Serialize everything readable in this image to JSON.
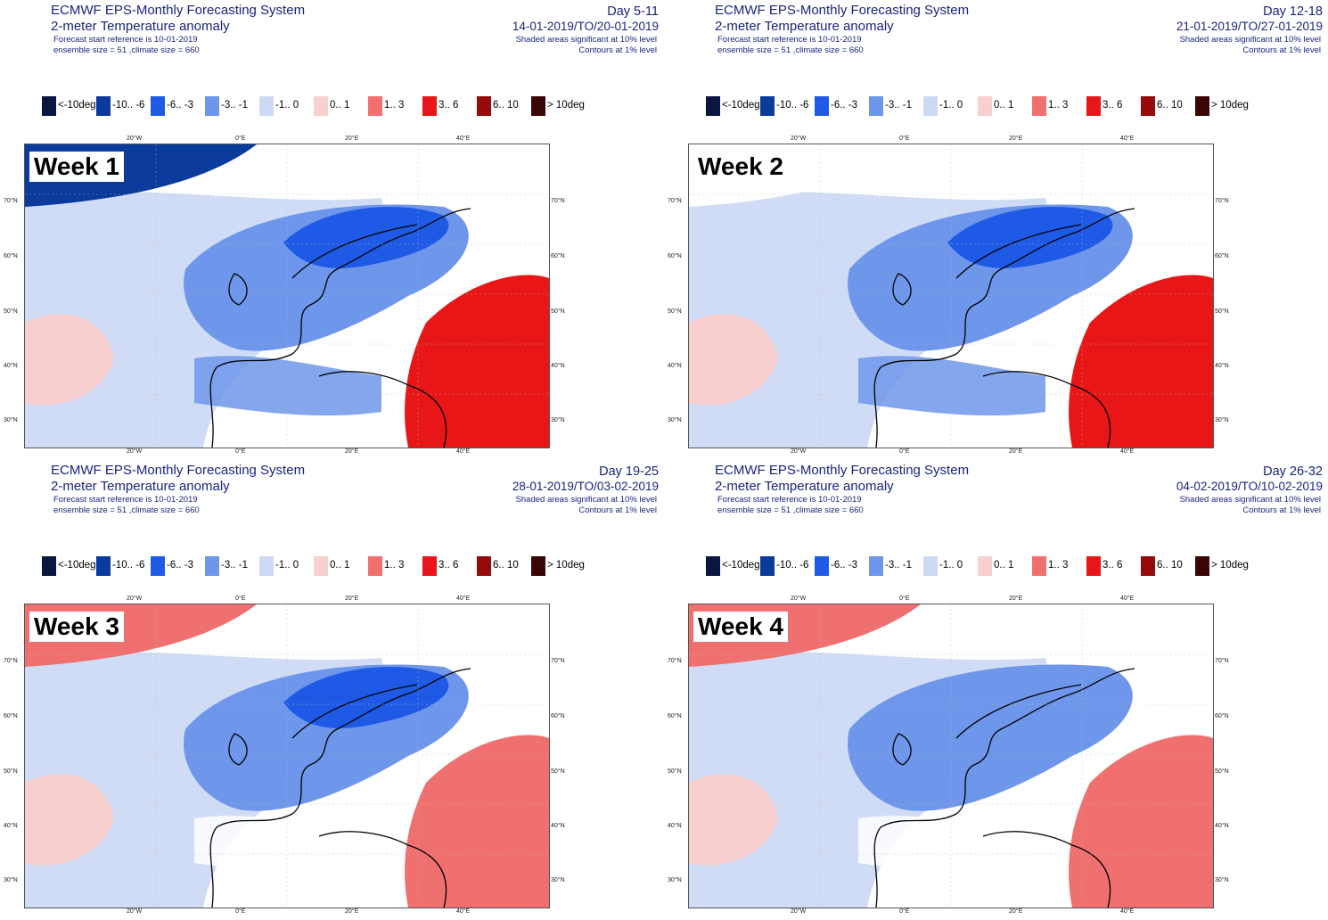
{
  "legend_items": [
    {
      "label": "<-10deg",
      "color": "#0a1640"
    },
    {
      "label": "-10.. -6",
      "color": "#0a3a9c"
    },
    {
      "label": "-6.. -3",
      "color": "#1e5ae6"
    },
    {
      "label": "-3.. -1",
      "color": "#6e96ea"
    },
    {
      "label": "-1..  0",
      "color": "#cddaf6"
    },
    {
      "label": "0..  1",
      "color": "#f9d0d0"
    },
    {
      "label": "1..  3",
      "color": "#f07070"
    },
    {
      "label": "3..  6",
      "color": "#e81616"
    },
    {
      "label": "6..  10",
      "color": "#960a0a"
    },
    {
      "label": ">  10deg",
      "color": "#3a0505"
    }
  ],
  "axis_ticks": {
    "lon": [
      "20°W",
      "0°E",
      "20°E",
      "40°E"
    ],
    "lat": [
      "70°N",
      "60°N",
      "50°N",
      "40°N",
      "30°N"
    ]
  },
  "panels": [
    {
      "title": "ECMWF EPS-Monthly Forecasting System",
      "subtitle": "2-meter Temperature anomaly",
      "start_ref": "Forecast start reference is 10-01-2019",
      "ensemble": "ensemble size = 51  ,climate size = 660",
      "day_range": "Day 5-11",
      "dates": "14-01-2019/TO/20-01-2019",
      "significance": "Shaded areas significant at 10% level",
      "contours": "Contours at 1% level",
      "week": "Week 1",
      "map_colors": {
        "nw_corner": "#0a3a9c",
        "north_sea": "#6e96ea",
        "scandinavia": "#1e5ae6",
        "atlantic": "#cddaf6",
        "east": "#e81616",
        "southwest": "#f9d0d0",
        "med": "#6e96ea"
      }
    },
    {
      "title": "ECMWF EPS-Monthly Forecasting System",
      "subtitle": "2-meter Temperature anomaly",
      "start_ref": "Forecast start reference is 10-01-2019",
      "ensemble": "ensemble size = 51  ,climate size = 660",
      "day_range": "Day 12-18",
      "dates": "21-01-2019/TO/27-01-2019",
      "significance": "Shaded areas significant at 10% level",
      "contours": "Contours at 1% level",
      "week": "Week 2",
      "map_colors": {
        "nw_corner": "#ffffff",
        "north_sea": "#6e96ea",
        "scandinavia": "#1e5ae6",
        "atlantic": "#cddaf6",
        "east": "#e81616",
        "southwest": "#f9d0d0",
        "med": "#6e96ea"
      }
    },
    {
      "title": "ECMWF EPS-Monthly Forecasting System",
      "subtitle": "2-meter Temperature anomaly",
      "start_ref": "Forecast start reference is 10-01-2019",
      "ensemble": "ensemble size = 51  ,climate size = 660",
      "day_range": "Day 19-25",
      "dates": "28-01-2019/TO/03-02-2019",
      "significance": "Shaded areas significant at 10% level",
      "contours": "Contours at 1% level",
      "week": "Week 3",
      "map_colors": {
        "nw_corner": "#f07070",
        "north_sea": "#6e96ea",
        "scandinavia": "#1e5ae6",
        "atlantic": "#cddaf6",
        "east": "#f07070",
        "southwest": "#f9d0d0",
        "med": "#ffffff"
      }
    },
    {
      "title": "ECMWF EPS-Monthly Forecasting System",
      "subtitle": "2-meter Temperature anomaly",
      "start_ref": "Forecast start reference is 10-01-2019",
      "ensemble": "ensemble size = 51  ,climate size = 660",
      "day_range": "Day 26-32",
      "dates": "04-02-2019/TO/10-02-2019",
      "significance": "Shaded areas significant at 10% level",
      "contours": "Contours at 1% level",
      "week": "Week 4",
      "map_colors": {
        "nw_corner": "#f07070",
        "north_sea": "#6e96ea",
        "scandinavia": "#6e96ea",
        "atlantic": "#cddaf6",
        "east": "#f07070",
        "southwest": "#f9d0d0",
        "med": "#ffffff"
      }
    }
  ]
}
